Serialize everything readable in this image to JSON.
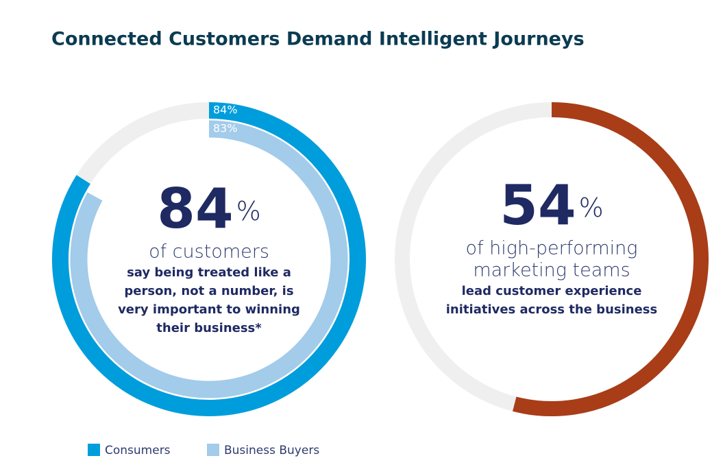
{
  "title": "Connected Customers Demand Intelligent Journeys",
  "chart_data": [
    {
      "type": "donut",
      "series": [
        {
          "name": "Consumers",
          "color": "#009ddc",
          "values": [
            84
          ],
          "value_labels": [
            "84%"
          ]
        },
        {
          "name": "Business Buyers",
          "color": "#a3cbea",
          "values": [
            83
          ],
          "value_labels": [
            "83%"
          ]
        }
      ],
      "headline": "84",
      "headline_unit": "%",
      "subtitle": [
        "of customers"
      ],
      "description": [
        "say being treated like a",
        "person, not a number, is",
        "very important to winning",
        "their business*"
      ]
    },
    {
      "type": "donut",
      "values": [
        54
      ],
      "color": "#a83d18",
      "headline": "54",
      "headline_unit": "%",
      "subtitle": [
        "of high-performing",
        "marketing teams"
      ],
      "description": [
        "lead customer experience",
        "initiatives across the business"
      ]
    }
  ]
}
